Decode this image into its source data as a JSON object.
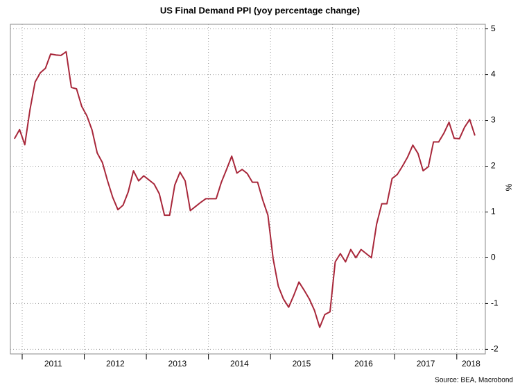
{
  "chart_data": {
    "type": "line",
    "title": "US Final Demand PPI (yoy percentage change)",
    "y_label": "%",
    "source": "Source: BEA, Macrobond",
    "x": [
      2010.875,
      2010.958,
      2011.042,
      2011.125,
      2011.208,
      2011.292,
      2011.375,
      2011.458,
      2011.542,
      2011.625,
      2011.708,
      2011.792,
      2011.875,
      2011.958,
      2012.042,
      2012.125,
      2012.208,
      2012.292,
      2012.375,
      2012.458,
      2012.542,
      2012.625,
      2012.708,
      2012.792,
      2012.875,
      2012.958,
      2013.042,
      2013.125,
      2013.208,
      2013.292,
      2013.375,
      2013.458,
      2013.542,
      2013.625,
      2013.708,
      2013.792,
      2013.875,
      2013.958,
      2014.042,
      2014.125,
      2014.208,
      2014.292,
      2014.375,
      2014.458,
      2014.542,
      2014.625,
      2014.708,
      2014.792,
      2014.875,
      2014.958,
      2015.042,
      2015.125,
      2015.208,
      2015.292,
      2015.375,
      2015.458,
      2015.542,
      2015.625,
      2015.708,
      2015.792,
      2015.875,
      2015.958,
      2016.042,
      2016.125,
      2016.208,
      2016.292,
      2016.375,
      2016.458,
      2016.542,
      2016.625,
      2016.708,
      2016.792,
      2016.875,
      2016.958,
      2017.042,
      2017.125,
      2017.208,
      2017.292,
      2017.375,
      2017.458,
      2017.542,
      2017.625,
      2017.708,
      2017.792,
      2017.875,
      2017.958,
      2018.042,
      2018.125,
      2018.208,
      2018.292
    ],
    "series": [
      {
        "color": "#a8273a",
        "values": [
          2.6,
          2.8,
          2.47,
          3.23,
          3.84,
          4.04,
          4.14,
          4.45,
          4.43,
          4.42,
          4.5,
          3.72,
          3.69,
          3.31,
          3.1,
          2.79,
          2.29,
          2.08,
          1.68,
          1.32,
          1.05,
          1.15,
          1.44,
          1.9,
          1.68,
          1.79,
          1.7,
          1.61,
          1.4,
          0.93,
          0.93,
          1.59,
          1.87,
          1.68,
          1.03,
          1.12,
          1.21,
          1.29,
          1.29,
          1.29,
          1.65,
          1.93,
          2.22,
          1.85,
          1.93,
          1.84,
          1.65,
          1.65,
          1.26,
          0.93,
          -0.02,
          -0.62,
          -0.9,
          -1.08,
          -0.82,
          -0.53,
          -0.71,
          -0.9,
          -1.15,
          -1.52,
          -1.24,
          -1.18,
          -0.09,
          0.09,
          -0.09,
          0.18,
          0,
          0.18,
          0.09,
          0,
          0.73,
          1.18,
          1.18,
          1.73,
          1.82,
          2.0,
          2.2,
          2.46,
          2.28,
          1.9,
          1.99,
          2.53,
          2.53,
          2.72,
          2.96,
          2.61,
          2.6,
          2.85,
          3.02,
          2.67
        ]
      }
    ],
    "xlim": [
      2010.81,
      2018.46
    ],
    "xticks": [
      2011,
      2012,
      2013,
      2014,
      2015,
      2016,
      2017,
      2018
    ],
    "ylim": [
      -2.1,
      5.1
    ],
    "yticks": [
      -2,
      -1,
      0,
      1,
      2,
      3,
      4,
      5
    ],
    "grid": true
  }
}
